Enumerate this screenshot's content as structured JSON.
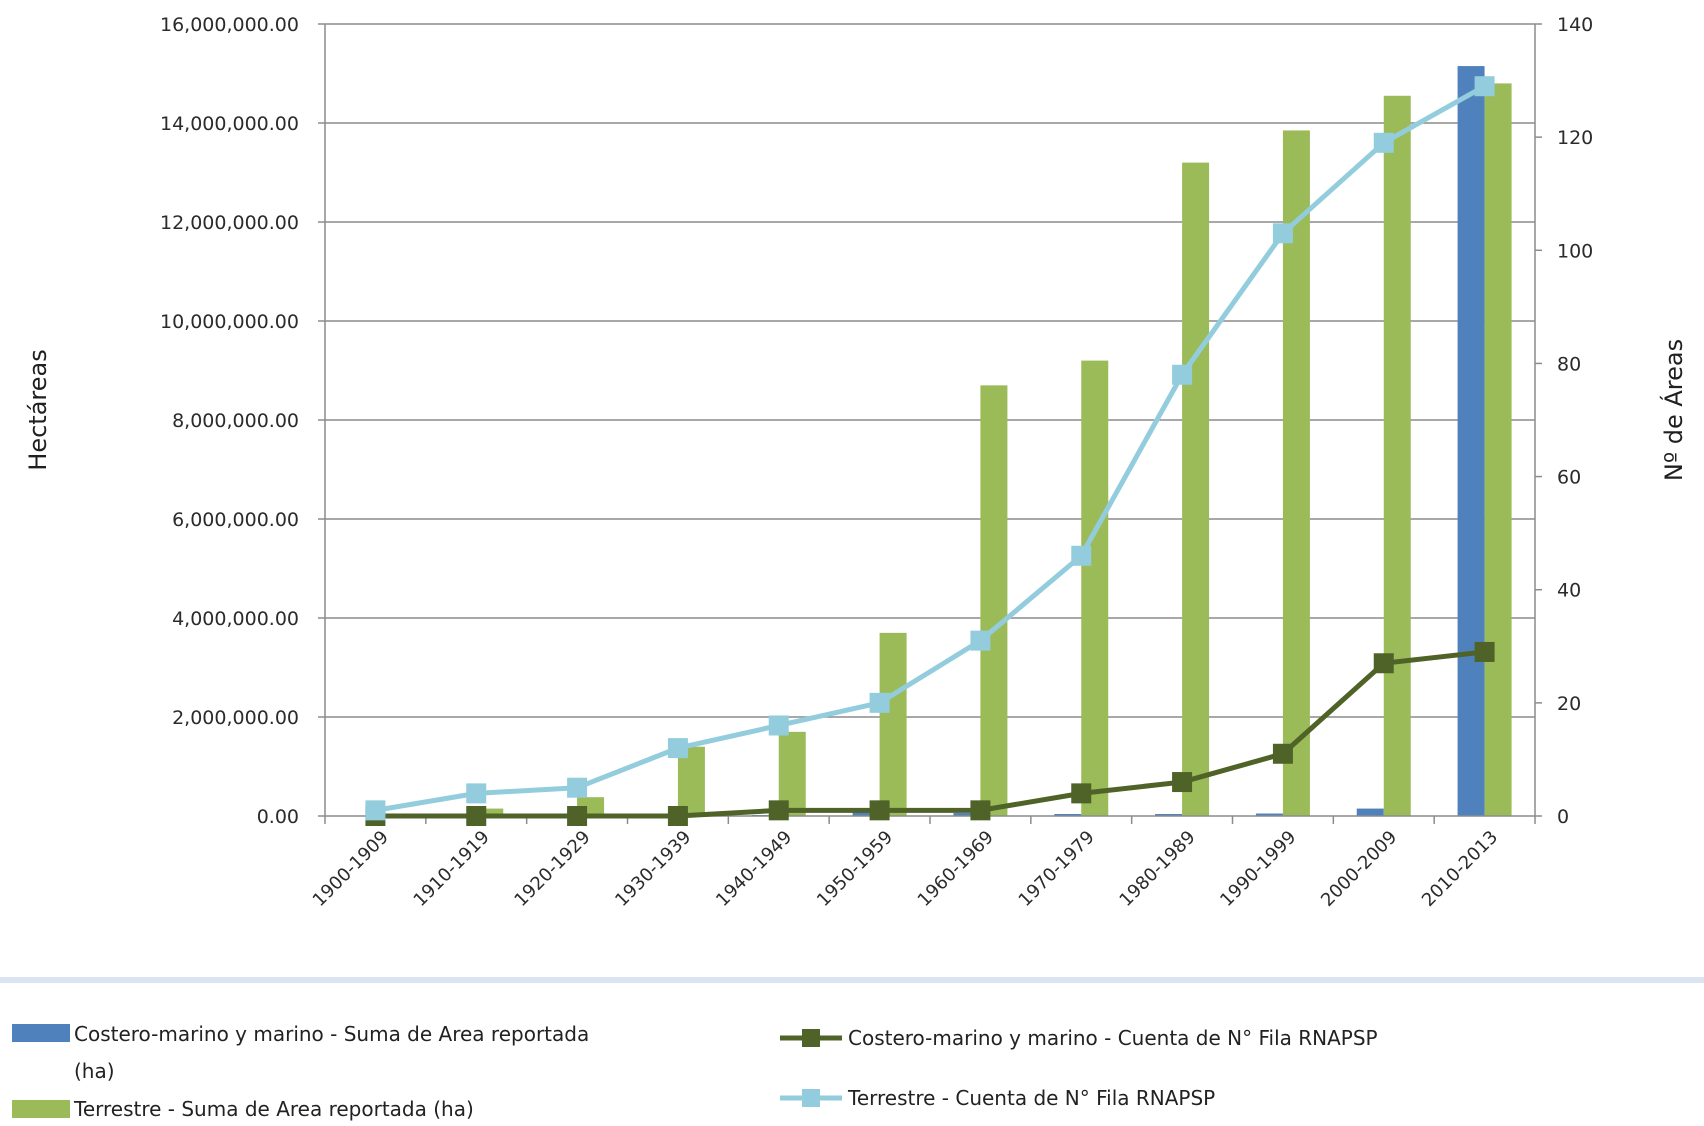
{
  "chart_data": {
    "type": "bar+line",
    "categories": [
      "1900-1909",
      "1910-1919",
      "1920-1929",
      "1930-1939",
      "1940-1949",
      "1950-1959",
      "1960-1969",
      "1970-1979",
      "1980-1989",
      "1990-1999",
      "2000-2009",
      "2010-2013"
    ],
    "ylabel_left": "Hectáreas",
    "ylabel_right": "Nº de Áreas",
    "ylim_left": [
      0,
      16000000
    ],
    "ylim_right": [
      0,
      140
    ],
    "left_ticks": [
      "0.00",
      "2,000,000.00",
      "4,000,000.00",
      "6,000,000.00",
      "8,000,000.00",
      "10,000,000.00",
      "12,000,000.00",
      "14,000,000.00",
      "16,000,000.00"
    ],
    "right_ticks": [
      "0",
      "20",
      "40",
      "60",
      "80",
      "100",
      "120",
      "140"
    ],
    "grid": true,
    "legend_position": "bottom",
    "bar_series": [
      {
        "name": "Costero-marino y marino - Suma de Area reportada (ha)",
        "color": "#4f81bd",
        "values": [
          10000,
          5000,
          5000,
          5000,
          20000,
          90000,
          60000,
          40000,
          40000,
          50000,
          150000,
          15150000
        ]
      },
      {
        "name": "Terrestre - Suma de Area reportada (ha)",
        "color": "#9bbb59",
        "values": [
          30000,
          150000,
          380000,
          1400000,
          1700000,
          3700000,
          8700000,
          9200000,
          13200000,
          13850000,
          14550000,
          14800000
        ]
      }
    ],
    "line_series": [
      {
        "name": "Costero-marino y marino - Cuenta de N° Fila RNAPSP",
        "color": "#4f6228",
        "values": [
          0,
          0,
          0,
          0,
          1,
          1,
          1,
          4,
          6,
          11,
          27,
          29
        ]
      },
      {
        "name": "Terrestre - Cuenta de N° Fila RNAPSP",
        "color": "#93cddd",
        "values": [
          1,
          4,
          5,
          12,
          16,
          20,
          31,
          46,
          78,
          103,
          119,
          129
        ]
      }
    ]
  },
  "legend": {
    "bar1_line1": "Costero-marino y marino - Suma de Area reportada",
    "bar1_line2": "(ha)",
    "bar2": "Terrestre - Suma de Area reportada (ha)",
    "line1": "Costero-marino y marino - Cuenta de N° Fila RNAPSP",
    "line2": "Terrestre - Cuenta de N° Fila RNAPSP"
  }
}
